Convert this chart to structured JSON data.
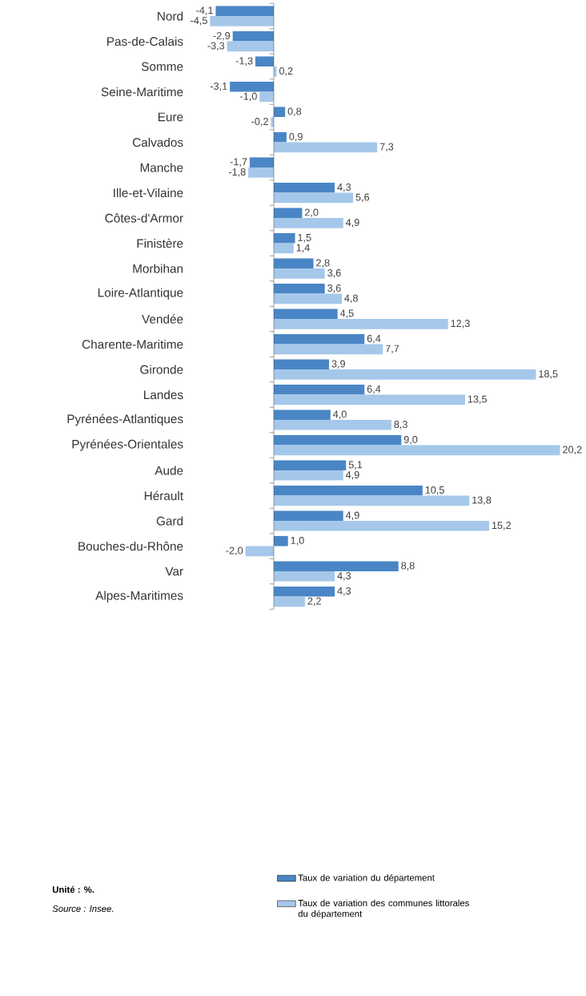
{
  "chart_data": {
    "type": "bar",
    "orientation": "horizontal",
    "categories": [
      "Nord",
      "Pas-de-Calais",
      "Somme",
      "Seine-Maritime",
      "Eure",
      "Calvados",
      "Manche",
      "Ille-et-Vilaine",
      "Côtes-d'Armor",
      "Finistère",
      "Morbihan",
      "Loire-Atlantique",
      "Vendée",
      "Charente-Maritime",
      "Gironde",
      "Landes",
      "Pyrénées-Atlantiques",
      "Pyrénées-Orientales",
      "Aude",
      "Hérault",
      "Gard",
      "Bouches-du-Rhône",
      "Var",
      "Alpes-Maritimes"
    ],
    "series": [
      {
        "name": "Taux de variation du département",
        "color": "#4a86c5",
        "values": [
          -4.1,
          -2.9,
          -1.3,
          -3.1,
          0.8,
          0.9,
          -1.7,
          4.3,
          2.0,
          1.5,
          2.8,
          3.6,
          4.5,
          6.4,
          3.9,
          6.4,
          4.0,
          9.0,
          5.1,
          10.5,
          4.9,
          1.0,
          8.8,
          4.3
        ],
        "value_labels": [
          "-4,1",
          "-2,9",
          "-1,3",
          "-3,1",
          "0,8",
          "0,9",
          "-1,7",
          "4,3",
          "2,0",
          "1,5",
          "2,8",
          "3,6",
          "4,5",
          "6,4",
          "3,9",
          "6,4",
          "4,0",
          "9,0",
          "5,1",
          "10,5",
          "4,9",
          "1,0",
          "8,8",
          "4,3"
        ]
      },
      {
        "name": "Taux de variation des communes littorales du département",
        "color": "#a5c8ea",
        "values": [
          -4.5,
          -3.3,
          0.2,
          -1.0,
          -0.2,
          7.3,
          -1.8,
          5.6,
          4.9,
          1.4,
          3.6,
          4.8,
          12.3,
          7.7,
          18.5,
          13.5,
          8.3,
          20.2,
          4.9,
          13.8,
          15.2,
          -2.0,
          4.3,
          2.2
        ],
        "value_labels": [
          "-4,5",
          "-3,3",
          "0,2",
          "-1,0",
          "-0,2",
          "7,3",
          "-1,8",
          "5,6",
          "4,9",
          "1,4",
          "3,6",
          "4,8",
          "12,3",
          "7,7",
          "18,5",
          "13,5",
          "8,3",
          "20,2",
          "4,9",
          "13,8",
          "15,2",
          "-2,0",
          "4,3",
          "2,2"
        ]
      }
    ],
    "legend": "bottom",
    "annotations": [
      "Unité : %.",
      "Source : Insee."
    ]
  }
}
